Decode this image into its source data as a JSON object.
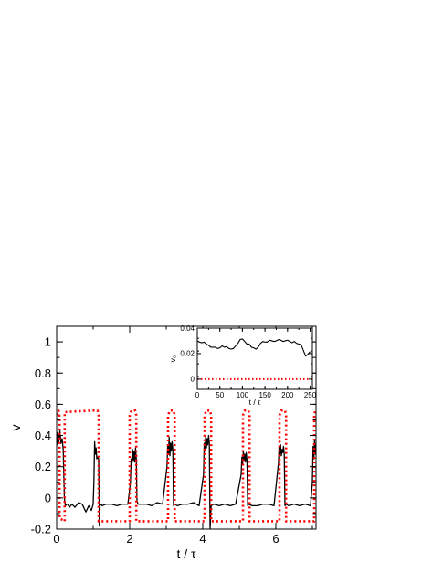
{
  "chart_data": [
    {
      "type": "line",
      "title": "",
      "xlabel": "t / τ",
      "ylabel": "v",
      "xlim": [
        0,
        7.1
      ],
      "ylim": [
        -0.2,
        1.1
      ],
      "xticks": [
        0,
        2,
        4,
        6
      ],
      "yticks": [
        -0.2,
        0,
        0.2,
        0.4,
        0.6,
        0.8,
        1
      ],
      "xtick_labels": [
        "0",
        "2",
        "4",
        "6"
      ],
      "ytick_labels": [
        "-0.2",
        "0",
        "0.2",
        "0.4",
        "0.6",
        "0.8",
        "1"
      ],
      "grid": false,
      "series": [
        {
          "color": "#000000",
          "style": "solid",
          "x": [
            0.0,
            0.03,
            0.06,
            0.09,
            0.12,
            0.15,
            0.18,
            0.21,
            0.24,
            0.27,
            0.3,
            0.35,
            0.42,
            0.5,
            0.6,
            0.7,
            0.8,
            0.88,
            0.95,
            1.0,
            1.02,
            1.04,
            1.06,
            1.08,
            1.1,
            1.12,
            1.15,
            1.17,
            1.19,
            1.21,
            1.25,
            1.35,
            1.5,
            1.65,
            1.8,
            1.95,
            2.02,
            2.04,
            2.06,
            2.08,
            2.1,
            2.12,
            2.14,
            2.16,
            2.18,
            2.2,
            2.23,
            2.3,
            2.45,
            2.6,
            2.75,
            2.9,
            3.02,
            3.04,
            3.06,
            3.08,
            3.1,
            3.12,
            3.14,
            3.16,
            3.18,
            3.2,
            3.23,
            3.3,
            3.45,
            3.6,
            3.75,
            3.9,
            4.02,
            4.04,
            4.06,
            4.08,
            4.1,
            4.12,
            4.14,
            4.16,
            4.18,
            4.2,
            4.23,
            4.3,
            4.45,
            4.6,
            4.75,
            4.9,
            5.05,
            5.07,
            5.09,
            5.11,
            5.13,
            5.15,
            5.17,
            5.19,
            5.21,
            5.23,
            5.26,
            5.35,
            5.5,
            5.65,
            5.8,
            5.95,
            6.07,
            6.09,
            6.11,
            6.13,
            6.15,
            6.17,
            6.19,
            6.21,
            6.23,
            6.25,
            6.28,
            6.35,
            6.5,
            6.65,
            6.8,
            6.95,
            7.0,
            7.02,
            7.04,
            7.06,
            7.08,
            7.1
          ],
          "y": [
            0.33,
            0.42,
            0.36,
            0.43,
            0.35,
            0.38,
            0.31,
            0.0,
            -0.05,
            -0.04,
            -0.04,
            -0.06,
            -0.04,
            -0.06,
            -0.03,
            -0.04,
            -0.09,
            -0.05,
            -0.08,
            -0.04,
            0.1,
            0.36,
            0.28,
            0.32,
            0.25,
            0.26,
            0.25,
            -0.18,
            -0.04,
            -0.04,
            -0.05,
            -0.04,
            -0.04,
            -0.05,
            -0.04,
            -0.04,
            0.1,
            0.25,
            0.22,
            0.31,
            0.24,
            0.3,
            0.23,
            0.32,
            0.25,
            -0.02,
            -0.04,
            -0.04,
            -0.04,
            -0.05,
            -0.03,
            -0.04,
            0.2,
            0.33,
            0.28,
            0.39,
            0.27,
            0.35,
            0.3,
            0.36,
            0.31,
            -0.05,
            -0.04,
            -0.05,
            -0.04,
            -0.04,
            -0.03,
            -0.05,
            0.15,
            0.35,
            0.3,
            0.4,
            0.32,
            0.38,
            0.34,
            0.4,
            0.35,
            -0.2,
            -0.05,
            -0.04,
            -0.05,
            -0.04,
            -0.05,
            -0.04,
            0.15,
            0.26,
            0.22,
            0.3,
            0.24,
            0.28,
            0.23,
            0.29,
            0.24,
            -0.05,
            -0.04,
            -0.05,
            -0.05,
            -0.04,
            -0.04,
            -0.05,
            0.22,
            0.33,
            0.28,
            0.34,
            0.27,
            0.31,
            0.29,
            0.33,
            0.28,
            -0.05,
            -0.04,
            -0.05,
            -0.04,
            -0.05,
            -0.04,
            -0.05,
            0.1,
            0.33,
            0.25,
            0.37,
            0.28,
            0.34
          ]
        },
        {
          "color": "#ff0000",
          "style": "dotted",
          "x": [
            0.02,
            0.05,
            0.08,
            0.08,
            0.22,
            0.22,
            1.0,
            1.0,
            1.05,
            1.12,
            1.15,
            1.15,
            2.0,
            2.0,
            2.05,
            2.15,
            2.18,
            2.18,
            3.05,
            3.05,
            3.1,
            3.2,
            3.23,
            3.23,
            4.05,
            4.05,
            4.1,
            4.2,
            4.23,
            4.23,
            5.1,
            5.1,
            5.15,
            5.25,
            5.28,
            5.28,
            6.1,
            6.1,
            6.15,
            6.25,
            6.28,
            6.28,
            7.05,
            7.05,
            7.08,
            7.1
          ],
          "y": [
            0.53,
            0.56,
            0.52,
            -0.13,
            -0.15,
            0.55,
            0.56,
            0.56,
            0.56,
            0.56,
            0.53,
            -0.15,
            -0.15,
            0.53,
            0.56,
            0.56,
            0.53,
            -0.15,
            -0.15,
            0.53,
            0.56,
            0.56,
            0.53,
            -0.15,
            -0.15,
            0.53,
            0.56,
            0.56,
            0.53,
            -0.15,
            -0.15,
            0.53,
            0.56,
            0.56,
            0.53,
            -0.15,
            -0.15,
            0.53,
            0.56,
            0.56,
            0.53,
            -0.15,
            -0.15,
            0.53,
            0.56,
            0.56
          ]
        }
      ]
    },
    {
      "type": "line",
      "title": "",
      "xlabel": "t / τ",
      "ylabel": "v₀",
      "xlim": [
        0,
        255
      ],
      "ylim": [
        -0.008,
        0.04
      ],
      "xticks": [
        0,
        50,
        100,
        150,
        200,
        250
      ],
      "yticks": [
        0,
        0.02,
        0.04
      ],
      "xtick_labels": [
        "0",
        "50",
        "100",
        "150",
        "200",
        "250"
      ],
      "ytick_labels": [
        "0",
        "0.02",
        "0.04"
      ],
      "grid": false,
      "series": [
        {
          "color": "#000000",
          "style": "solid",
          "x": [
            0,
            5,
            10,
            15,
            20,
            25,
            30,
            35,
            40,
            45,
            50,
            55,
            60,
            65,
            70,
            75,
            80,
            85,
            90,
            95,
            100,
            105,
            110,
            115,
            120,
            125,
            130,
            135,
            140,
            145,
            150,
            155,
            160,
            165,
            170,
            175,
            180,
            185,
            190,
            195,
            200,
            205,
            210,
            215,
            220,
            225,
            230,
            235,
            240,
            245,
            250
          ],
          "y": [
            0.03,
            0.029,
            0.0285,
            0.029,
            0.0275,
            0.0265,
            0.025,
            0.025,
            0.025,
            0.024,
            0.0245,
            0.026,
            0.025,
            0.0255,
            0.024,
            0.0235,
            0.024,
            0.026,
            0.028,
            0.031,
            0.0315,
            0.0295,
            0.0275,
            0.0275,
            0.025,
            0.0245,
            0.0235,
            0.025,
            0.028,
            0.0295,
            0.029,
            0.029,
            0.0305,
            0.03,
            0.0295,
            0.03,
            0.031,
            0.0305,
            0.0295,
            0.03,
            0.0305,
            0.0295,
            0.0285,
            0.0295,
            0.028,
            0.0275,
            0.027,
            0.0225,
            0.018,
            0.0195,
            0.0215
          ]
        },
        {
          "color": "#ff0000",
          "style": "dotted",
          "x": [
            0,
            255
          ],
          "y": [
            0,
            0
          ]
        }
      ]
    }
  ]
}
